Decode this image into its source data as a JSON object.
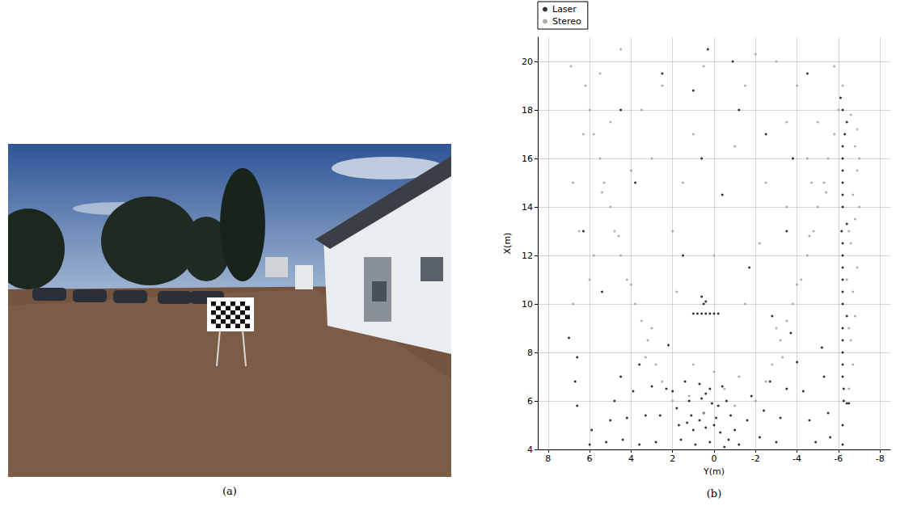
{
  "photo": {
    "caption": "(a)"
  },
  "chart_data": {
    "type": "scatter",
    "caption": "(b)",
    "x_label": "Y(m)",
    "y_label": "X(m)",
    "xlim": [
      8.5,
      -8.5
    ],
    "xticks": [
      8,
      6,
      4,
      2,
      0,
      -2,
      -4,
      -6,
      -8
    ],
    "ylim": [
      4,
      21
    ],
    "yticks": [
      4,
      6,
      8,
      10,
      12,
      14,
      16,
      18,
      20
    ],
    "grid": true,
    "legend": "upper left",
    "series": [
      {
        "name": "Laser",
        "color": "#000000",
        "marker": "circle",
        "values": [
          [
            -6.2,
            4.2
          ],
          [
            -6.2,
            5
          ],
          [
            -6.25,
            6
          ],
          [
            -6.5,
            5.9
          ],
          [
            -6.4,
            5.9
          ],
          [
            -6.2,
            7
          ],
          [
            -6.2,
            8
          ],
          [
            -6.2,
            9
          ],
          [
            -6.4,
            9.5
          ],
          [
            -6.2,
            10
          ],
          [
            -6.2,
            11
          ],
          [
            -6.2,
            12
          ],
          [
            -6.15,
            13
          ],
          [
            -6.4,
            13.3
          ],
          [
            -6.2,
            14
          ],
          [
            -6.2,
            15
          ],
          [
            -6.2,
            16
          ],
          [
            -6.3,
            17
          ],
          [
            -6.4,
            17.5
          ],
          [
            -6.2,
            18
          ],
          [
            -6.1,
            18.5
          ],
          [
            -6.25,
            6.5
          ],
          [
            -6.2,
            7.5
          ],
          [
            -6.2,
            8.5
          ],
          [
            -6.2,
            10.5
          ],
          [
            -6.2,
            11.5
          ],
          [
            -6.2,
            12.5
          ],
          [
            -6.2,
            14.5
          ],
          [
            -6.2,
            15.5
          ],
          [
            -6.2,
            16.5
          ],
          [
            -5.6,
            4.5
          ],
          [
            -5.5,
            5.5
          ],
          [
            -5.3,
            7
          ],
          [
            -5.2,
            8.2
          ],
          [
            -4.9,
            4.3
          ],
          [
            -4.6,
            5.2
          ],
          [
            -4.3,
            6.4
          ],
          [
            -4,
            7.6
          ],
          [
            -3.7,
            8.8
          ],
          [
            -1.2,
            4.2
          ],
          [
            -1,
            4.8
          ],
          [
            -0.8,
            5.4
          ],
          [
            -0.6,
            6
          ],
          [
            -0.4,
            6.6
          ],
          [
            -0.5,
            4.1
          ],
          [
            -0.3,
            4.7
          ],
          [
            -0.1,
            5.3
          ],
          [
            0.1,
            5.9
          ],
          [
            0.2,
            6.5
          ],
          [
            0.2,
            4.3
          ],
          [
            0.4,
            4.9
          ],
          [
            0.5,
            5.5
          ],
          [
            0.6,
            6.1
          ],
          [
            0.7,
            6.7
          ],
          [
            0.9,
            4.2
          ],
          [
            1,
            4.8
          ],
          [
            1.1,
            5.4
          ],
          [
            1.2,
            6
          ],
          [
            1.4,
            6.8
          ],
          [
            1.6,
            4.4
          ],
          [
            1.7,
            5
          ],
          [
            1.8,
            5.7
          ],
          [
            2,
            6.4
          ],
          [
            -1.6,
            5.2
          ],
          [
            -1.8,
            6.2
          ],
          [
            -2.2,
            4.5
          ],
          [
            -2.4,
            5.6
          ],
          [
            -2.7,
            6.8
          ],
          [
            -3,
            4.3
          ],
          [
            -3.2,
            5.3
          ],
          [
            -3.5,
            6.5
          ],
          [
            -0.7,
            4.4
          ],
          [
            0,
            5
          ],
          [
            0.7,
            5.2
          ],
          [
            1.3,
            5.1
          ],
          [
            -0.2,
            5.8
          ],
          [
            0.4,
            6.3
          ],
          [
            6,
            4.2
          ],
          [
            5.9,
            4.8
          ],
          [
            5.2,
            4.3
          ],
          [
            5,
            5.2
          ],
          [
            4.8,
            6
          ],
          [
            4.5,
            7
          ],
          [
            4.4,
            4.4
          ],
          [
            4.2,
            5.3
          ],
          [
            3.9,
            6.4
          ],
          [
            3.6,
            7.5
          ],
          [
            3.6,
            4.2
          ],
          [
            3.3,
            5.4
          ],
          [
            3,
            6.6
          ],
          [
            2.8,
            4.3
          ],
          [
            2.6,
            5.4
          ],
          [
            2.3,
            6.5
          ],
          [
            6.6,
            5.8
          ],
          [
            6.7,
            6.8
          ],
          [
            6.6,
            7.8
          ],
          [
            7,
            8.6
          ],
          [
            1,
            9.6
          ],
          [
            0.8,
            9.6
          ],
          [
            0.6,
            9.6
          ],
          [
            0.4,
            9.6
          ],
          [
            0.2,
            9.6
          ],
          [
            0,
            9.6
          ],
          [
            -0.2,
            9.6
          ],
          [
            0.5,
            10
          ],
          [
            0.6,
            10.3
          ],
          [
            0.4,
            10.1
          ],
          [
            1.5,
            12
          ],
          [
            -0.4,
            14.5
          ],
          [
            0.6,
            16
          ],
          [
            -1.2,
            18
          ],
          [
            2.5,
            19.5
          ],
          [
            -2.5,
            17
          ],
          [
            0.3,
            20.5
          ],
          [
            3.8,
            15
          ],
          [
            -3.5,
            13
          ],
          [
            1,
            18.8
          ],
          [
            -1.7,
            11.5
          ],
          [
            -0.9,
            20
          ],
          [
            2.2,
            8.3
          ],
          [
            -2.8,
            9.5
          ],
          [
            5.4,
            10.5
          ],
          [
            6.3,
            13
          ],
          [
            4.5,
            18
          ],
          [
            -4.5,
            19.5
          ],
          [
            -3.8,
            16
          ]
        ]
      },
      {
        "name": "Stereo",
        "color": "#9a9a9a",
        "marker": "circle",
        "values": [
          [
            -6.5,
            6.5
          ],
          [
            -6.7,
            7.5
          ],
          [
            -6.6,
            8.5
          ],
          [
            -6.8,
            9.5
          ],
          [
            -6.7,
            10.5
          ],
          [
            -6.9,
            11.5
          ],
          [
            -6.6,
            12.5
          ],
          [
            -6.8,
            13.5
          ],
          [
            -6.7,
            14.5
          ],
          [
            -6.9,
            15.5
          ],
          [
            -6.8,
            16.5
          ],
          [
            -6.9,
            17.2
          ],
          [
            -6.6,
            17.8
          ],
          [
            -6.4,
            11
          ],
          [
            -6.5,
            13
          ],
          [
            -7,
            14
          ],
          [
            -7,
            16
          ],
          [
            -6.5,
            9
          ],
          [
            -2,
            6
          ],
          [
            -2.5,
            6.8
          ],
          [
            -2.8,
            7.5
          ],
          [
            -3.2,
            8.5
          ],
          [
            -3.5,
            9.3
          ],
          [
            -3.8,
            10
          ],
          [
            -4.2,
            11
          ],
          [
            -4.5,
            12
          ],
          [
            -4.8,
            13
          ],
          [
            -5,
            14
          ],
          [
            -5.3,
            15
          ],
          [
            -5.5,
            16
          ],
          [
            -5.8,
            17
          ],
          [
            -6,
            18
          ],
          [
            -6.2,
            19
          ],
          [
            -3,
            9
          ],
          [
            -4,
            10.8
          ],
          [
            -4.6,
            12.8
          ],
          [
            -5.4,
            14.6
          ],
          [
            -3.3,
            7.8
          ],
          [
            2,
            6
          ],
          [
            2.5,
            6.8
          ],
          [
            2.8,
            7.5
          ],
          [
            3.2,
            8.5
          ],
          [
            3.5,
            9.3
          ],
          [
            3.8,
            10
          ],
          [
            4.2,
            11
          ],
          [
            4.5,
            12
          ],
          [
            4.8,
            13
          ],
          [
            5,
            14
          ],
          [
            5.3,
            15
          ],
          [
            5.5,
            16
          ],
          [
            5.8,
            17
          ],
          [
            6,
            18
          ],
          [
            6.2,
            19
          ],
          [
            3,
            9
          ],
          [
            4,
            10.8
          ],
          [
            4.6,
            12.8
          ],
          [
            5.4,
            14.6
          ],
          [
            3.3,
            7.8
          ],
          [
            6.5,
            13
          ],
          [
            6.8,
            15
          ],
          [
            6.3,
            17
          ],
          [
            5.5,
            19.5
          ],
          [
            4.5,
            20.5
          ],
          [
            3.5,
            18
          ],
          [
            3,
            16
          ],
          [
            4,
            15.5
          ],
          [
            6,
            11
          ],
          [
            6.8,
            10
          ],
          [
            5,
            17.5
          ],
          [
            2.5,
            19
          ],
          [
            6.9,
            19.8
          ],
          [
            5.8,
            12
          ],
          [
            1.5,
            15
          ],
          [
            1,
            17
          ],
          [
            -1,
            16.5
          ],
          [
            -1.5,
            19
          ],
          [
            0.5,
            19.8
          ],
          [
            -2.5,
            15
          ],
          [
            -3.5,
            17.5
          ],
          [
            -4,
            19
          ],
          [
            -2,
            20.3
          ],
          [
            2,
            13
          ],
          [
            -2.2,
            12.5
          ],
          [
            1.8,
            10.5
          ],
          [
            -1.5,
            10
          ],
          [
            0,
            12
          ],
          [
            -1,
            5.8
          ],
          [
            0.5,
            5.5
          ],
          [
            1.2,
            6.2
          ],
          [
            -0.5,
            6.5
          ],
          [
            0,
            7.2
          ],
          [
            1,
            7.5
          ],
          [
            -1.2,
            7
          ],
          [
            -5,
            17.5
          ],
          [
            -4.5,
            16
          ],
          [
            -3.5,
            14
          ],
          [
            -5.8,
            19.8
          ],
          [
            -3,
            20
          ],
          [
            -4.7,
            15
          ]
        ]
      }
    ]
  }
}
